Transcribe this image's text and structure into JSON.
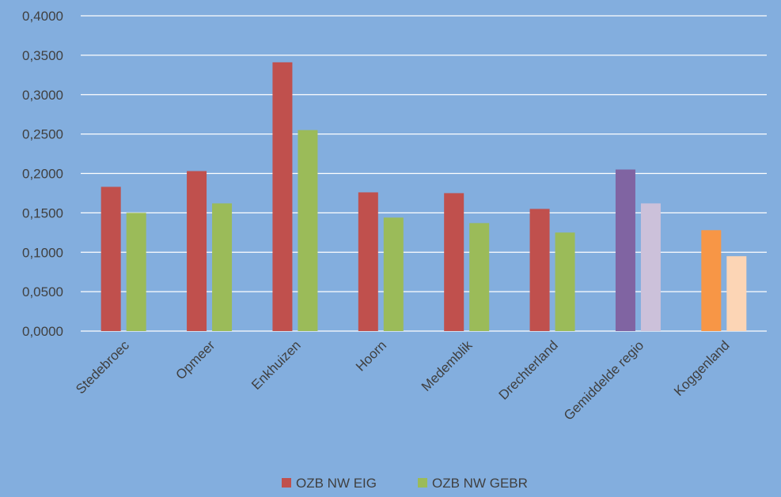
{
  "chart_data": {
    "type": "bar",
    "categories": [
      "Stedebroec",
      "Opmeer",
      "Enkhuizen",
      "Hoorn",
      "Medemblik",
      "Drechterland",
      "Gemiddelde regio",
      "Koggenland"
    ],
    "series": [
      {
        "name": "OZB NW EIG",
        "color": "#c0504d",
        "values": [
          0.183,
          0.203,
          0.341,
          0.176,
          0.175,
          0.155,
          0.205,
          0.128
        ],
        "point_colors": [
          "#c0504d",
          "#c0504d",
          "#c0504d",
          "#c0504d",
          "#c0504d",
          "#c0504d",
          "#8064a2",
          "#f79646"
        ]
      },
      {
        "name": "OZB NW GEBR",
        "color": "#9bbb59",
        "values": [
          0.15,
          0.162,
          0.255,
          0.144,
          0.137,
          0.125,
          0.162,
          0.095
        ],
        "point_colors": [
          "#9bbb59",
          "#9bbb59",
          "#9bbb59",
          "#9bbb59",
          "#9bbb59",
          "#9bbb59",
          "#ccc1da",
          "#fcd5b5"
        ]
      }
    ],
    "ylim": [
      0,
      0.4
    ],
    "y_ticks": [
      "0,0000",
      "0,0500",
      "0,1000",
      "0,1500",
      "0,2000",
      "0,2500",
      "0,3000",
      "0,3500",
      "0,4000"
    ],
    "title": "",
    "xlabel": "",
    "ylabel": "",
    "grid": true,
    "legend_position": "bottom",
    "background_color": "#83aede",
    "gridline_color": "#ffffff"
  }
}
